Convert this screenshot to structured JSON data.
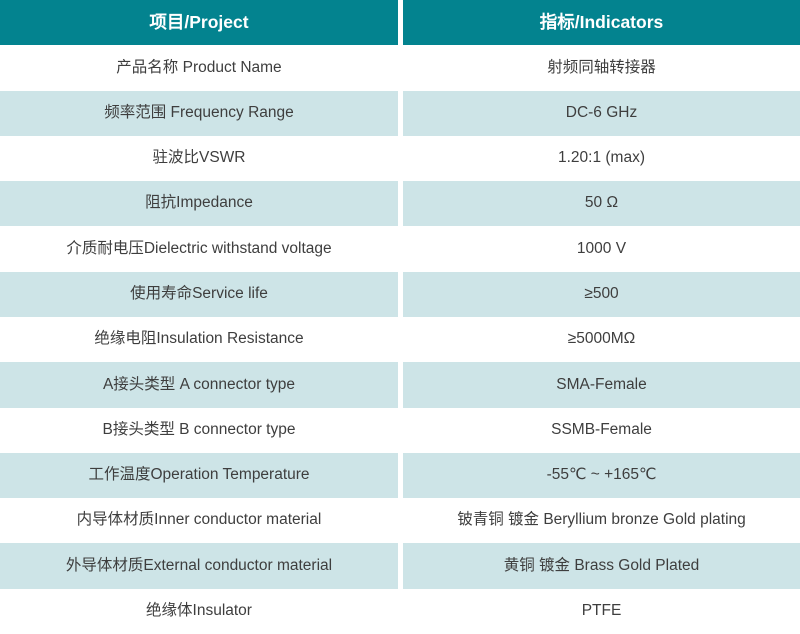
{
  "table": {
    "header": {
      "project_label": "项目/Project",
      "indicators_label": "指标/Indicators"
    },
    "rows": [
      {
        "project": "产品名称 Product Name",
        "indicator": "射频同轴转接器"
      },
      {
        "project": "频率范围 Frequency Range",
        "indicator": "DC-6 GHz"
      },
      {
        "project": "驻波比VSWR",
        "indicator": "1.20:1 (max)"
      },
      {
        "project": "阻抗Impedance",
        "indicator": "50 Ω"
      },
      {
        "project": "介质耐电压Dielectric withstand voltage",
        "indicator": "1000 V"
      },
      {
        "project": "使用寿命Service life",
        "indicator": "≥500"
      },
      {
        "project": "绝缘电阻Insulation Resistance",
        "indicator": "≥5000MΩ"
      },
      {
        "project": "A接头类型 A connector type",
        "indicator": "SMA-Female"
      },
      {
        "project": "B接头类型 B connector type",
        "indicator": "SSMB-Female"
      },
      {
        "project": "工作温度Operation Temperature",
        "indicator": "-55℃ ~ +165℃"
      },
      {
        "project": "内导体材质Inner conductor material",
        "indicator": "铍青铜 镀金 Beryllium bronze Gold plating"
      },
      {
        "project": "外导体材质External conductor material",
        "indicator": "黄铜 镀金 Brass Gold Plated"
      },
      {
        "project": "绝缘体Insulator",
        "indicator": "PTFE"
      }
    ],
    "colors": {
      "header_bg": "#03838F",
      "header_text": "#FFFFFF",
      "row_bg": "#FFFFFF",
      "alt_row_bg": "#CDE4E7",
      "body_text": "#3E3E3E",
      "divider": "#FFFFFF"
    }
  }
}
